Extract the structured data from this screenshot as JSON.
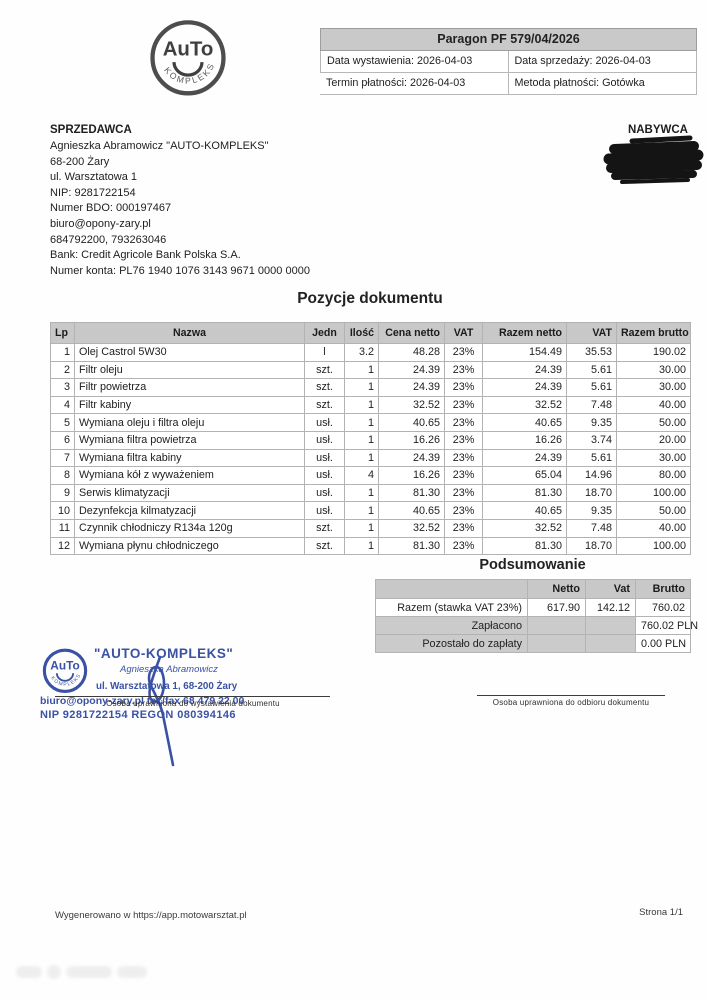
{
  "doc_header": {
    "title": "Paragon PF 579/04/2026",
    "fields": [
      {
        "label": "Data wystawienia:",
        "value": "2026-04-03"
      },
      {
        "label": "Data sprzedaży:",
        "value": "2026-04-03"
      },
      {
        "label": "Termin płatności:",
        "value": "2026-04-03"
      },
      {
        "label": "Metoda płatności:",
        "value": "Gotówka"
      }
    ]
  },
  "logo": {
    "text": "AuTo",
    "arc": "KOMPLEKS"
  },
  "seller": {
    "heading": "SPRZEDAWCA",
    "lines": [
      "Agnieszka Abramowicz \"AUTO-KOMPLEKS\"",
      "68-200 Żary",
      "ul. Warsztatowa 1",
      "NIP: 9281722154",
      "Numer BDO: 000197467",
      "biuro@opony-zary.pl",
      "684792200, 793263046",
      "Bank: Credit Agricole Bank Polska S.A.",
      "Numer konta: PL76 1940 1076 3143 9671 0000 0000"
    ]
  },
  "buyer": {
    "heading": "NABYWCA"
  },
  "items": {
    "title": "Pozycje dokumentu",
    "columns": [
      "Lp",
      "Nazwa",
      "Jedn",
      "Ilość",
      "Cena netto",
      "VAT",
      "Razem netto",
      "VAT",
      "Razem brutto"
    ],
    "rows": [
      [
        "1",
        "Olej Castrol 5W30",
        "l",
        "3.2",
        "48.28",
        "23%",
        "154.49",
        "35.53",
        "190.02"
      ],
      [
        "2",
        "Filtr oleju",
        "szt.",
        "1",
        "24.39",
        "23%",
        "24.39",
        "5.61",
        "30.00"
      ],
      [
        "3",
        "Filtr powietrza",
        "szt.",
        "1",
        "24.39",
        "23%",
        "24.39",
        "5.61",
        "30.00"
      ],
      [
        "4",
        "Filtr kabiny",
        "szt.",
        "1",
        "32.52",
        "23%",
        "32.52",
        "7.48",
        "40.00"
      ],
      [
        "5",
        "Wymiana oleju i filtra oleju",
        "usł.",
        "1",
        "40.65",
        "23%",
        "40.65",
        "9.35",
        "50.00"
      ],
      [
        "6",
        "Wymiana filtra powietrza",
        "usł.",
        "1",
        "16.26",
        "23%",
        "16.26",
        "3.74",
        "20.00"
      ],
      [
        "7",
        "Wymiana filtra kabiny",
        "usł.",
        "1",
        "24.39",
        "23%",
        "24.39",
        "5.61",
        "30.00"
      ],
      [
        "8",
        "Wymiana kół z wyważeniem",
        "usł.",
        "4",
        "16.26",
        "23%",
        "65.04",
        "14.96",
        "80.00"
      ],
      [
        "9",
        "Serwis klimatyzacji",
        "usł.",
        "1",
        "81.30",
        "23%",
        "81.30",
        "18.70",
        "100.00"
      ],
      [
        "10",
        "Dezynfekcja kilmatyzacji",
        "usł.",
        "1",
        "40.65",
        "23%",
        "40.65",
        "9.35",
        "50.00"
      ],
      [
        "11",
        "Czynnik chłodniczy R134a 120g",
        "szt.",
        "1",
        "32.52",
        "23%",
        "32.52",
        "7.48",
        "40.00"
      ],
      [
        "12",
        "Wymiana płynu chłodniczego",
        "szt.",
        "1",
        "81.30",
        "23%",
        "81.30",
        "18.70",
        "100.00"
      ]
    ]
  },
  "summary": {
    "title": "Podsumowanie",
    "columns": [
      "",
      "Netto",
      "Vat",
      "Brutto"
    ],
    "rows": [
      [
        "Razem (stawka VAT 23%)",
        "617.90",
        "142.12",
        "760.02"
      ],
      [
        "Zapłacono",
        "",
        "",
        "760.02 PLN"
      ],
      [
        "Pozostało do zapłaty",
        "",
        "",
        "0.00 PLN"
      ]
    ]
  },
  "stamp": {
    "company": "\"AUTO-KOMPLEKS\"",
    "owner": "Agnieszka Abramowicz",
    "address": "ul. Warsztatowa 1, 68-200 Żary",
    "contact": "biuro@opony-zary.pl tel./fax 68 479 22 00",
    "ids": "NIP 9281722154 REGON 080394146"
  },
  "signatures": {
    "issuer": "Osoba uprawniona do wystawienia dokumentu",
    "receiver": "Osoba uprawniona do odbioru dokumentu"
  },
  "footer": {
    "left": "Wygenerowano w https://app.motowarsztat.pl",
    "right": "Strona 1/1"
  },
  "colors": {
    "stamp_blue": "#3a51a4",
    "table_header_gray": "#c8c8c8",
    "redaction_black": "#141414"
  }
}
